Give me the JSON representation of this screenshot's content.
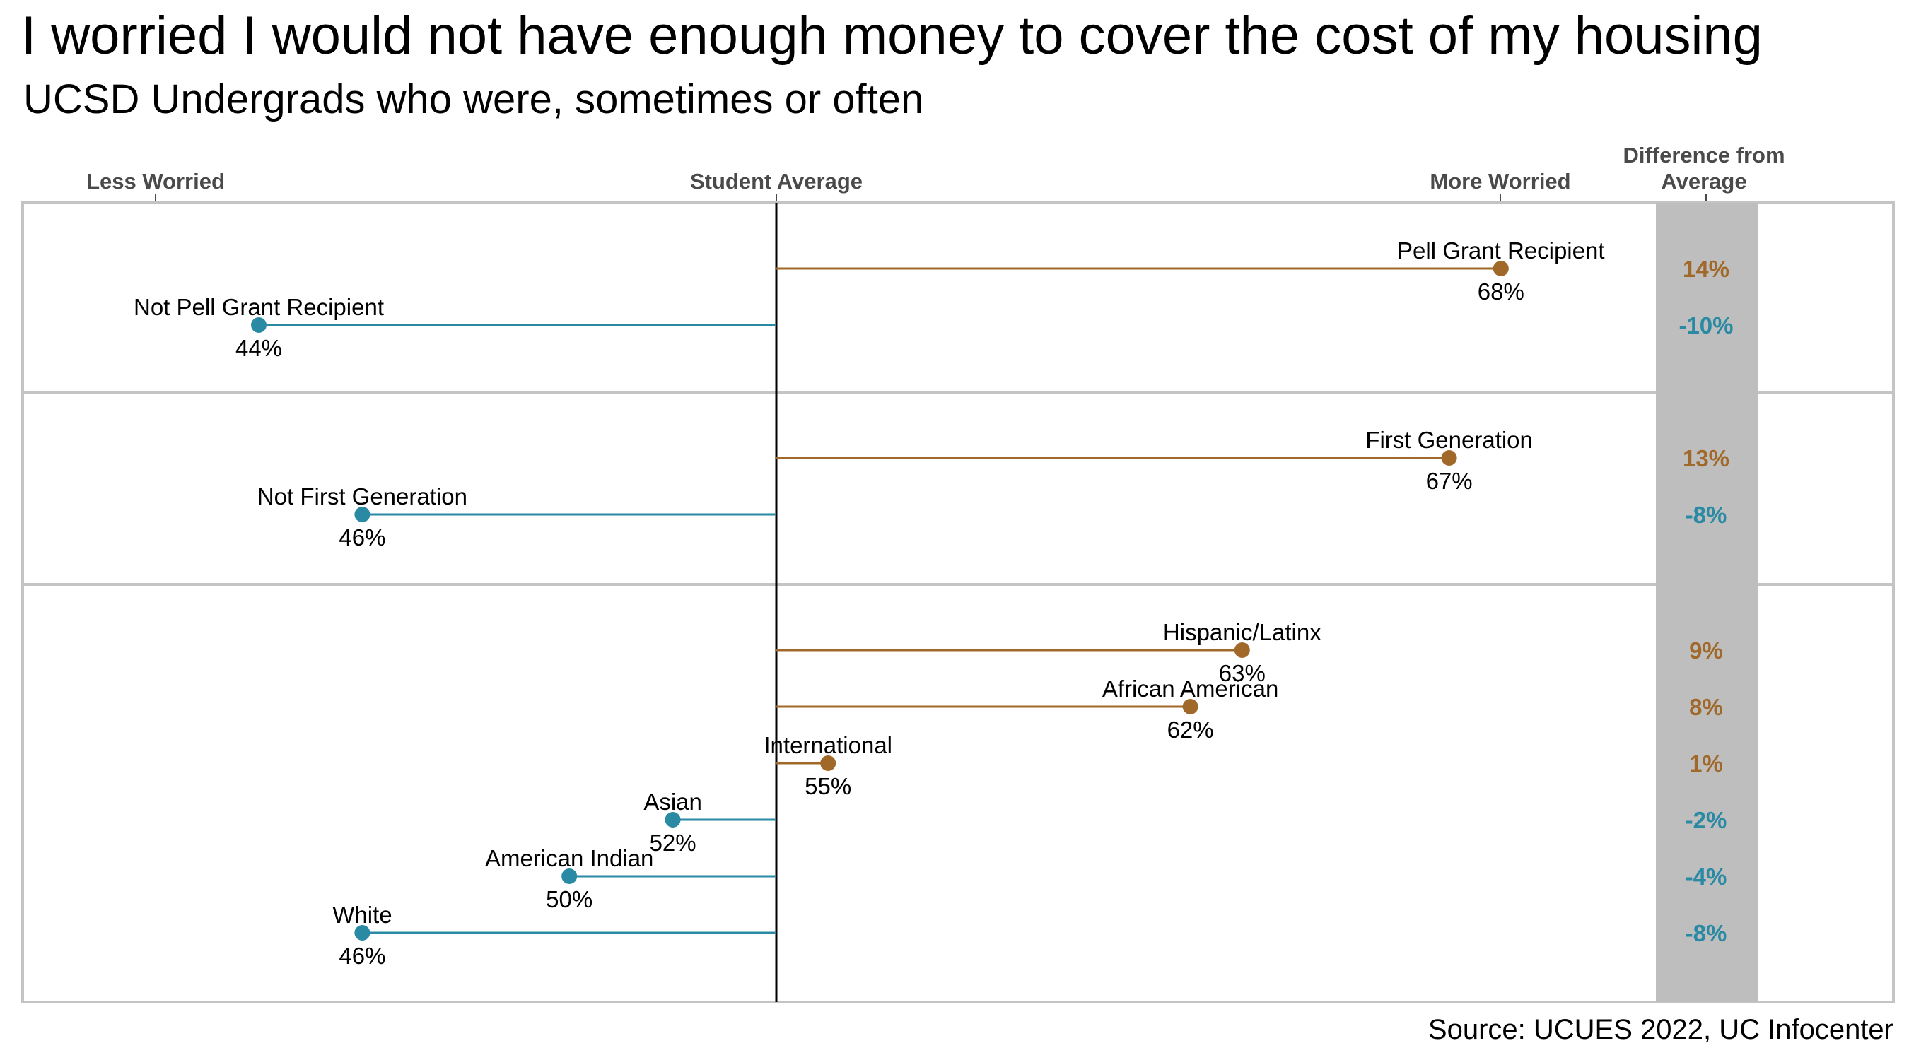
{
  "title": "I worried I would not have enough money to cover the cost of my housing",
  "subtitle": "UCSD Undergrads who were, sometimes or often",
  "source": "Source: UCUES 2022, UC Infocenter",
  "axis_captions": {
    "less": "Less Worried",
    "average": "Student Average",
    "more": "More Worried",
    "difference_line1": "Difference from",
    "difference_line2": "Average"
  },
  "colors": {
    "above_average": "#a0692a",
    "below_average": "#2a8aa3",
    "difference_band": "#bebebe",
    "panel_border": "#c4c4c4",
    "average_line": "#000000"
  },
  "chart_data": {
    "type": "lollipop",
    "reference": "Student Average",
    "panels": [
      {
        "rows": [
          {
            "label": "Pell Grant Recipient",
            "value": 68,
            "value_label": "68%",
            "difference": "14%"
          },
          {
            "label": "Not Pell Grant Recipient",
            "value": 44,
            "value_label": "44%",
            "difference": "-10%"
          }
        ]
      },
      {
        "rows": [
          {
            "label": "First Generation",
            "value": 67,
            "value_label": "67%",
            "difference": "13%"
          },
          {
            "label": "Not First Generation",
            "value": 46,
            "value_label": "46%",
            "difference": "-8%"
          }
        ]
      },
      {
        "rows": [
          {
            "label": "Hispanic/Latinx",
            "value": 63,
            "value_label": "63%",
            "difference": "9%"
          },
          {
            "label": "African American",
            "value": 62,
            "value_label": "62%",
            "difference": "8%"
          },
          {
            "label": "International",
            "value": 55,
            "value_label": "55%",
            "difference": "1%"
          },
          {
            "label": "Asian",
            "value": 52,
            "value_label": "52%",
            "difference": "-2%"
          },
          {
            "label": "American Indian",
            "value": 50,
            "value_label": "50%",
            "difference": "-4%"
          },
          {
            "label": "White",
            "value": 46,
            "value_label": "46%",
            "difference": "-8%"
          }
        ]
      }
    ]
  }
}
